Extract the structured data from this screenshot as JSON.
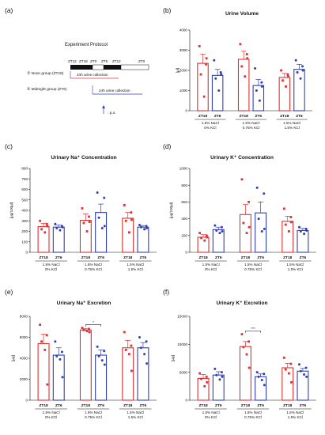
{
  "colors": {
    "ZT18": "#e03030",
    "ZT6": "#2f3fb8",
    "ink": "#111111"
  },
  "protocol": {
    "panel_label": "(a)",
    "title": "Experiment Protocol",
    "timeline_labels": [
      "ZT12",
      "ZT18",
      "ZT0",
      "ZT6",
      "ZT12",
      "ZT0"
    ],
    "group1": "① Noon group (ZT18)",
    "group2": "② Midnight group (ZT6)",
    "collection1": "24h  urine collection",
    "collection2": "24h  urine collection",
    "po_label": ": p.o."
  },
  "chart_data": [
    {
      "id": "b",
      "panel_label": "(b)",
      "type": "bar",
      "title": "Urine Volume",
      "ylabel": "[μl]",
      "ylim": [
        0,
        4000
      ],
      "yticks": [
        0,
        1000,
        2000,
        3000,
        4000
      ],
      "categories": [
        "ZT18",
        "ZT6"
      ],
      "groups": [
        {
          "label": "1.5% NaCl",
          "label2": "0% KCl"
        },
        {
          "label": "1.5% NaCl",
          "label2": "0.75% KCl"
        },
        {
          "label": "1.5% NaCl",
          "label2": "1.5% KCl"
        }
      ],
      "series": [
        {
          "group": 0,
          "cat": "ZT18",
          "mean": 2350,
          "sem": 450,
          "points": [
            3200,
            2300,
            1800,
            700,
            2600
          ]
        },
        {
          "group": 0,
          "cat": "ZT6",
          "mean": 1750,
          "sem": 300,
          "points": [
            2500,
            1900,
            1600,
            1000,
            1800
          ]
        },
        {
          "group": 1,
          "cat": "ZT18",
          "mean": 2550,
          "sem": 400,
          "points": [
            3300,
            2800,
            2200,
            1700,
            2600
          ]
        },
        {
          "group": 1,
          "cat": "ZT6",
          "mean": 1250,
          "sem": 300,
          "points": [
            2100,
            1400,
            1000,
            500,
            1200
          ]
        },
        {
          "group": 2,
          "cat": "ZT18",
          "mean": 1650,
          "sem": 200,
          "points": [
            2000,
            1800,
            1500,
            1200,
            1700
          ]
        },
        {
          "group": 2,
          "cat": "ZT6",
          "mean": 2050,
          "sem": 250,
          "points": [
            2500,
            2200,
            1900,
            1600,
            2000
          ]
        }
      ],
      "significance": []
    },
    {
      "id": "c",
      "panel_label": "(c)",
      "type": "bar",
      "title": "Urinary Na⁺ Concentration",
      "ylabel": "[μg/100μl]",
      "ylim": [
        0,
        800
      ],
      "yticks": [
        0,
        100,
        200,
        300,
        400,
        500,
        600,
        700,
        800
      ],
      "categories": [
        "ZT18",
        "ZT6"
      ],
      "groups": [
        {
          "label": "1.5% NaCl",
          "label2": "0% KCl"
        },
        {
          "label": "1.5% NaCl",
          "label2": "0.75% KCl"
        },
        {
          "label": "1.5% NaCl",
          "label2": "1.5% KCl"
        }
      ],
      "series": [
        {
          "group": 0,
          "cat": "ZT18",
          "mean": 245,
          "sem": 30,
          "points": [
            300,
            270,
            220,
            190,
            250
          ]
        },
        {
          "group": 0,
          "cat": "ZT6",
          "mean": 240,
          "sem": 20,
          "points": [
            270,
            250,
            230,
            210,
            240
          ]
        },
        {
          "group": 1,
          "cat": "ZT18",
          "mean": 305,
          "sem": 60,
          "points": [
            420,
            340,
            280,
            200,
            290
          ]
        },
        {
          "group": 1,
          "cat": "ZT6",
          "mean": 380,
          "sem": 80,
          "points": [
            570,
            520,
            330,
            230,
            250
          ]
        },
        {
          "group": 2,
          "cat": "ZT18",
          "mean": 325,
          "sem": 55,
          "points": [
            450,
            380,
            300,
            190,
            310
          ]
        },
        {
          "group": 2,
          "cat": "ZT6",
          "mean": 240,
          "sem": 15,
          "points": [
            260,
            250,
            240,
            220,
            230
          ]
        }
      ],
      "significance": []
    },
    {
      "id": "d",
      "panel_label": "(d)",
      "type": "bar",
      "title": "Urinary K⁺ Concentration",
      "ylabel": "[μg/100μl]",
      "ylim": [
        0,
        1000
      ],
      "yticks": [
        0,
        200,
        400,
        600,
        800,
        1000
      ],
      "categories": [
        "ZT18",
        "ZT6"
      ],
      "groups": [
        {
          "label": "1.5% NaCl",
          "label2": "0% KCl"
        },
        {
          "label": "1.5% NaCl",
          "label2": "0.75% KCl"
        },
        {
          "label": "1.5% NaCl",
          "label2": "1.5% KCl"
        }
      ],
      "series": [
        {
          "group": 0,
          "cat": "ZT18",
          "mean": 180,
          "sem": 30,
          "points": [
            230,
            200,
            170,
            140,
            180
          ]
        },
        {
          "group": 0,
          "cat": "ZT6",
          "mean": 270,
          "sem": 30,
          "points": [
            320,
            300,
            260,
            230,
            250
          ]
        },
        {
          "group": 1,
          "cat": "ZT18",
          "mean": 450,
          "sem": 120,
          "points": [
            870,
            600,
            350,
            230,
            300
          ]
        },
        {
          "group": 1,
          "cat": "ZT6",
          "mean": 470,
          "sem": 130,
          "points": [
            770,
            700,
            400,
            250,
            280
          ]
        },
        {
          "group": 2,
          "cat": "ZT18",
          "mean": 370,
          "sem": 60,
          "points": [
            520,
            420,
            330,
            250,
            360
          ]
        },
        {
          "group": 2,
          "cat": "ZT6",
          "mean": 260,
          "sem": 25,
          "points": [
            300,
            280,
            250,
            220,
            260
          ]
        }
      ],
      "significance": []
    },
    {
      "id": "e",
      "panel_label": "(e)",
      "type": "bar",
      "title": "Urinary Na⁺ Excretion",
      "ylabel": "[μg]",
      "ylim": [
        0,
        8000
      ],
      "yticks": [
        0,
        2000,
        4000,
        6000,
        8000
      ],
      "categories": [
        "ZT18",
        "ZT6"
      ],
      "groups": [
        {
          "label": "1.5% NaCl",
          "label2": "0% KCl"
        },
        {
          "label": "1.5% NaCl",
          "label2": "0.75% KCl"
        },
        {
          "label": "1.5% NaCl",
          "label2": "1.5% KCl"
        }
      ],
      "series": [
        {
          "group": 0,
          "cat": "ZT18",
          "mean": 5400,
          "sem": 900,
          "points": [
            7200,
            6200,
            5600,
            4800,
            1500
          ]
        },
        {
          "group": 0,
          "cat": "ZT6",
          "mean": 4300,
          "sem": 700,
          "points": [
            5600,
            4600,
            4200,
            3900,
            2200
          ]
        },
        {
          "group": 1,
          "cat": "ZT18",
          "mean": 6700,
          "sem": 150,
          "points": [
            6900,
            6800,
            6700,
            6600,
            6500
          ]
        },
        {
          "group": 1,
          "cat": "ZT6",
          "mean": 4300,
          "sem": 500,
          "points": [
            5100,
            4700,
            4200,
            3800,
            3400
          ]
        },
        {
          "group": 2,
          "cat": "ZT18",
          "mean": 5000,
          "sem": 700,
          "points": [
            6500,
            5200,
            4800,
            4400,
            2800
          ]
        },
        {
          "group": 2,
          "cat": "ZT6",
          "mean": 5000,
          "sem": 500,
          "points": [
            6000,
            5600,
            5000,
            4400,
            3500
          ]
        }
      ],
      "significance": [
        {
          "group": 1,
          "label": "*"
        }
      ]
    },
    {
      "id": "f",
      "panel_label": "(f)",
      "type": "bar",
      "title": "Urinary K⁺ Excretion",
      "ylabel": "[μg]",
      "ylim": [
        0,
        15000
      ],
      "yticks": [
        0,
        5000,
        10000,
        15000
      ],
      "categories": [
        "ZT18",
        "ZT6"
      ],
      "groups": [
        {
          "label": "1.5% NaCl",
          "label2": "0% KCl"
        },
        {
          "label": "1.5% NaCl",
          "label2": "0.75% KCl"
        },
        {
          "label": "1.5% NaCl",
          "label2": "1.5% KCl"
        }
      ],
      "series": [
        {
          "group": 0,
          "cat": "ZT18",
          "mean": 3900,
          "sem": 700,
          "points": [
            4800,
            4200,
            3800,
            2500,
            3200
          ]
        },
        {
          "group": 0,
          "cat": "ZT6",
          "mean": 4500,
          "sem": 600,
          "points": [
            5600,
            5000,
            4500,
            3700,
            4200
          ]
        },
        {
          "group": 1,
          "cat": "ZT18",
          "mean": 9600,
          "sem": 900,
          "points": [
            11800,
            10500,
            9500,
            8200,
            5800
          ]
        },
        {
          "group": 1,
          "cat": "ZT6",
          "mean": 4200,
          "sem": 500,
          "points": [
            5000,
            4700,
            4200,
            3600,
            2700
          ]
        },
        {
          "group": 2,
          "cat": "ZT18",
          "mean": 5800,
          "sem": 800,
          "points": [
            7600,
            6500,
            5500,
            4800,
            3200
          ]
        },
        {
          "group": 2,
          "cat": "ZT6",
          "mean": 5200,
          "sem": 500,
          "points": [
            6400,
            5800,
            5200,
            4600,
            4200
          ]
        }
      ],
      "significance": [
        {
          "group": 1,
          "label": "***"
        }
      ]
    }
  ]
}
